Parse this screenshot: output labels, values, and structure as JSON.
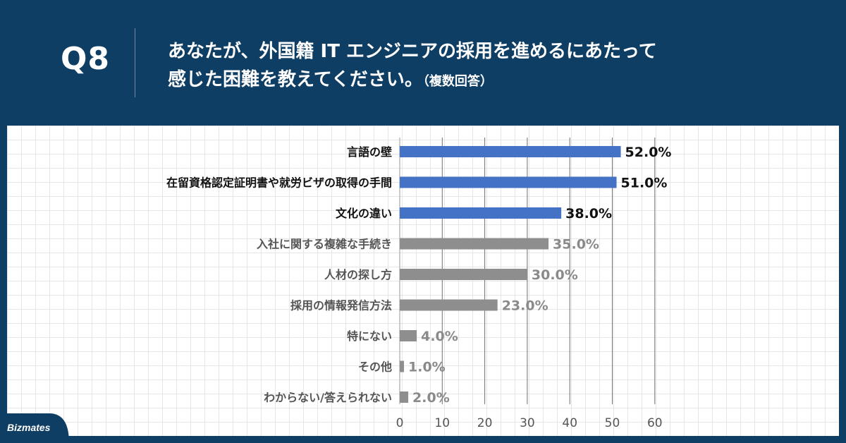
{
  "header": {
    "q_label": "Q8",
    "question_line1": "あなたが、外国籍 IT エンジニアの採用を進めるにあたって",
    "question_line2": "感じた困難を教えてください。",
    "question_suffix": "（複数回答）"
  },
  "brand": {
    "logo_text": "Bizmates",
    "colors": {
      "header_bg": "#0f3e64",
      "highlight_bar": "#4472c4",
      "normal_bar": "#8e8e8e",
      "highlight_text": "#111111",
      "normal_text": "#8a8a8a"
    }
  },
  "chart_data": {
    "type": "bar",
    "orientation": "horizontal",
    "categories": [
      "言語の壁",
      "在留資格認定証明書や就労ビザの取得の手間",
      "文化の違い",
      "入社に関する複雑な手続き",
      "人材の探し方",
      "採用の情報発信方法",
      "特にない",
      "その他",
      "わからない/答えられない"
    ],
    "values": [
      52.0,
      51.0,
      38.0,
      35.0,
      30.0,
      23.0,
      4.0,
      1.0,
      2.0
    ],
    "value_labels": [
      "52.0%",
      "51.0%",
      "38.0%",
      "35.0%",
      "30.0%",
      "23.0%",
      "4.0%",
      "1.0%",
      "2.0%"
    ],
    "highlighted": [
      true,
      true,
      true,
      false,
      false,
      false,
      false,
      false,
      false
    ],
    "xlim": [
      0,
      60
    ],
    "xticks": [
      0,
      10,
      20,
      30,
      40,
      50,
      60
    ],
    "grid": true,
    "title": "",
    "xlabel": "",
    "ylabel": ""
  }
}
